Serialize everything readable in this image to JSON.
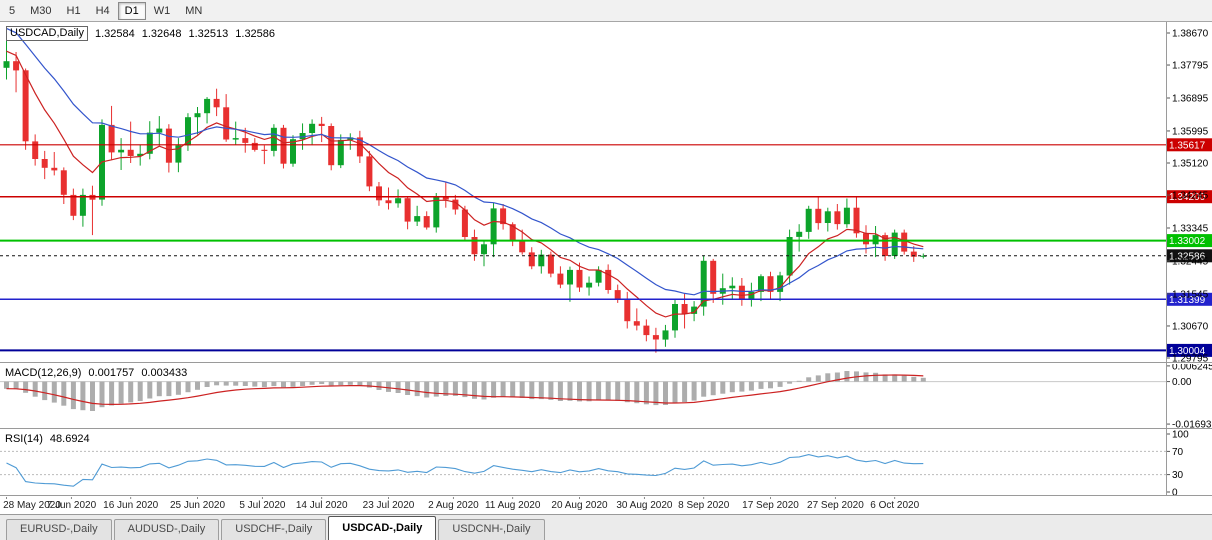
{
  "toolbar": {
    "timeframes": [
      {
        "label": "5",
        "active": false
      },
      {
        "label": "M30",
        "active": false
      },
      {
        "label": "H1",
        "active": false
      },
      {
        "label": "H4",
        "active": false
      },
      {
        "label": "D1",
        "active": true
      },
      {
        "label": "W1",
        "active": false
      },
      {
        "label": "MN",
        "active": false
      }
    ]
  },
  "chart_header": {
    "symbol": "USDCAD,Daily",
    "open": "1.32584",
    "high": "1.32648",
    "low": "1.32513",
    "close": "1.32586"
  },
  "indicators": {
    "macd_label": "MACD(12,26,9)",
    "macd_value": "0.001757",
    "macd_signal_value": "0.003433",
    "rsi_label": "RSI(14)",
    "rsi_value": "48.6924"
  },
  "price_axis": {
    "labels": [
      "1.38670",
      "1.37795",
      "1.36895",
      "1.35995",
      "1.35120",
      "1.34245",
      "1.33345",
      "1.32445",
      "1.31545",
      "1.30670",
      "1.29795"
    ]
  },
  "macd_axis": [
    "0.006245",
    "0.00",
    "-0.016933"
  ],
  "rsi_axis": [
    "100",
    "70",
    "30",
    "0"
  ],
  "levels": [
    {
      "price": 1.35617,
      "label": "1.35617",
      "color": "#CC0000",
      "width": 1.2,
      "dashed": false
    },
    {
      "price": 1.342,
      "label": "1.34200",
      "color": "#CC0000",
      "width": 1.5,
      "dashed": false
    },
    {
      "price": 1.33002,
      "label": "1.33002",
      "color": "#00C000",
      "width": 2,
      "dashed": false
    },
    {
      "price": 1.32586,
      "label": "1.32586",
      "color": "#111111",
      "width": 1,
      "dashed": true
    },
    {
      "price": 1.31399,
      "label": "1.31399",
      "color": "#2222CC",
      "width": 1.5,
      "dashed": false
    },
    {
      "price": 1.30004,
      "label": "1.30004",
      "color": "#000099",
      "width": 2,
      "dashed": false
    }
  ],
  "colors": {
    "bull": "#0DA32B",
    "bear": "#E83030",
    "ma_fast": "#CC2222",
    "ma_slow": "#3355CC",
    "macd_hist": "#ADADAD",
    "macd_signal": "#CC2222",
    "rsi_line": "#4F9BD5",
    "axis_text": "#000000",
    "grid_sep": "#9a9a9a"
  },
  "tabs": [
    {
      "label": "EURUSD-,Daily",
      "active": false
    },
    {
      "label": "AUDUSD-,Daily",
      "active": false
    },
    {
      "label": "USDCHF-,Daily",
      "active": false
    },
    {
      "label": "USDCAD-,Daily",
      "active": true
    },
    {
      "label": "USDCNH-,Daily",
      "active": false
    }
  ],
  "chart_data": {
    "type": "candlestick",
    "symbol": "USDCAD",
    "timeframe": "Daily",
    "y_range": [
      1.29686,
      1.3897
    ],
    "x_labels": [
      {
        "i": 0,
        "t": "28 May 2020"
      },
      {
        "i": 6.8,
        "t": "7 Jun 2020"
      },
      {
        "i": 13,
        "t": "16 Jun 2020"
      },
      {
        "i": 20,
        "t": "25 Jun 2020"
      },
      {
        "i": 26.8,
        "t": "5 Jul 2020"
      },
      {
        "i": 33,
        "t": "14 Jul 2020"
      },
      {
        "i": 40,
        "t": "23 Jul 2020"
      },
      {
        "i": 46.8,
        "t": "2 Aug 2020"
      },
      {
        "i": 53,
        "t": "11 Aug 2020"
      },
      {
        "i": 60,
        "t": "20 Aug 2020"
      },
      {
        "i": 66.8,
        "t": "30 Aug 2020"
      },
      {
        "i": 73,
        "t": "8 Sep 2020"
      },
      {
        "i": 80,
        "t": "17 Sep 2020"
      },
      {
        "i": 86.8,
        "t": "27 Sep 2020"
      },
      {
        "i": 93,
        "t": "6 Oct 2020"
      }
    ],
    "candles": [
      [
        1.3772,
        1.388,
        1.374,
        1.379
      ],
      [
        1.379,
        1.3815,
        1.3705,
        1.3765
      ],
      [
        1.3765,
        1.377,
        1.3548,
        1.3571
      ],
      [
        1.3571,
        1.359,
        1.3505,
        1.3523
      ],
      [
        1.3523,
        1.3545,
        1.3468,
        1.3499
      ],
      [
        1.3499,
        1.3542,
        1.3478,
        1.3492
      ],
      [
        1.3492,
        1.35,
        1.34,
        1.3425
      ],
      [
        1.3425,
        1.3442,
        1.3356,
        1.3368
      ],
      [
        1.3368,
        1.3442,
        1.3338,
        1.3425
      ],
      [
        1.3425,
        1.345,
        1.3315,
        1.3412
      ],
      [
        1.3412,
        1.3631,
        1.3395,
        1.3616
      ],
      [
        1.3616,
        1.3668,
        1.352,
        1.3541
      ],
      [
        1.3541,
        1.358,
        1.3493,
        1.3548
      ],
      [
        1.3548,
        1.3625,
        1.3512,
        1.3531
      ],
      [
        1.3531,
        1.3562,
        1.3505,
        1.3537
      ],
      [
        1.3537,
        1.3626,
        1.3522,
        1.3595
      ],
      [
        1.3595,
        1.364,
        1.356,
        1.3606
      ],
      [
        1.3606,
        1.3618,
        1.3486,
        1.3513
      ],
      [
        1.3513,
        1.358,
        1.3487,
        1.356
      ],
      [
        1.356,
        1.3648,
        1.3545,
        1.3637
      ],
      [
        1.3637,
        1.3665,
        1.359,
        1.3648
      ],
      [
        1.3648,
        1.3692,
        1.362,
        1.3687
      ],
      [
        1.3687,
        1.3715,
        1.364,
        1.3664
      ],
      [
        1.3664,
        1.37,
        1.357,
        1.3576
      ],
      [
        1.3576,
        1.3625,
        1.3562,
        1.358
      ],
      [
        1.358,
        1.3608,
        1.354,
        1.3567
      ],
      [
        1.3567,
        1.358,
        1.3543,
        1.3548
      ],
      [
        1.3548,
        1.356,
        1.3509,
        1.3545
      ],
      [
        1.3545,
        1.3618,
        1.353,
        1.3608
      ],
      [
        1.3608,
        1.3616,
        1.3497,
        1.351
      ],
      [
        1.351,
        1.3588,
        1.3502,
        1.3577
      ],
      [
        1.3577,
        1.362,
        1.3548,
        1.3594
      ],
      [
        1.3594,
        1.3631,
        1.3561,
        1.3619
      ],
      [
        1.3619,
        1.3638,
        1.3569,
        1.3613
      ],
      [
        1.3613,
        1.362,
        1.3492,
        1.3506
      ],
      [
        1.3506,
        1.359,
        1.3498,
        1.3575
      ],
      [
        1.3575,
        1.3593,
        1.3548,
        1.3582
      ],
      [
        1.3582,
        1.36,
        1.3512,
        1.353
      ],
      [
        1.353,
        1.3545,
        1.3435,
        1.3448
      ],
      [
        1.3448,
        1.346,
        1.3395,
        1.341
      ],
      [
        1.341,
        1.3445,
        1.3385,
        1.3402
      ],
      [
        1.3402,
        1.344,
        1.339,
        1.3416
      ],
      [
        1.3416,
        1.342,
        1.3331,
        1.3352
      ],
      [
        1.3352,
        1.3395,
        1.334,
        1.3367
      ],
      [
        1.3367,
        1.338,
        1.333,
        1.3336
      ],
      [
        1.3336,
        1.343,
        1.3322,
        1.3421
      ],
      [
        1.3421,
        1.3459,
        1.339,
        1.3412
      ],
      [
        1.3412,
        1.3425,
        1.3371,
        1.3385
      ],
      [
        1.3385,
        1.3395,
        1.33,
        1.331
      ],
      [
        1.331,
        1.333,
        1.3245,
        1.3263
      ],
      [
        1.3263,
        1.3298,
        1.323,
        1.329
      ],
      [
        1.329,
        1.3403,
        1.3255,
        1.3388
      ],
      [
        1.3388,
        1.34,
        1.333,
        1.3345
      ],
      [
        1.3345,
        1.335,
        1.3285,
        1.33
      ],
      [
        1.33,
        1.333,
        1.3262,
        1.3268
      ],
      [
        1.3268,
        1.3282,
        1.3222,
        1.323
      ],
      [
        1.323,
        1.3275,
        1.321,
        1.3262
      ],
      [
        1.3262,
        1.327,
        1.32,
        1.321
      ],
      [
        1.321,
        1.323,
        1.317,
        1.318
      ],
      [
        1.318,
        1.3229,
        1.3133,
        1.322
      ],
      [
        1.322,
        1.324,
        1.316,
        1.3172
      ],
      [
        1.3172,
        1.3202,
        1.315,
        1.3185
      ],
      [
        1.3185,
        1.323,
        1.3175,
        1.322
      ],
      [
        1.322,
        1.3235,
        1.3155,
        1.3165
      ],
      [
        1.3165,
        1.318,
        1.313,
        1.3142
      ],
      [
        1.3142,
        1.316,
        1.306,
        1.308
      ],
      [
        1.308,
        1.3115,
        1.3055,
        1.3068
      ],
      [
        1.3068,
        1.3085,
        1.3025,
        1.3042
      ],
      [
        1.3042,
        1.3062,
        1.2994,
        1.303
      ],
      [
        1.303,
        1.307,
        1.301,
        1.3055
      ],
      [
        1.3055,
        1.314,
        1.3035,
        1.3127
      ],
      [
        1.3127,
        1.3155,
        1.306,
        1.31
      ],
      [
        1.31,
        1.3135,
        1.308,
        1.312
      ],
      [
        1.312,
        1.326,
        1.3095,
        1.3245
      ],
      [
        1.3245,
        1.325,
        1.313,
        1.3155
      ],
      [
        1.3155,
        1.321,
        1.3125,
        1.317
      ],
      [
        1.317,
        1.32,
        1.314,
        1.3177
      ],
      [
        1.3177,
        1.3198,
        1.3122,
        1.3142
      ],
      [
        1.3142,
        1.3185,
        1.312,
        1.316
      ],
      [
        1.316,
        1.3208,
        1.3135,
        1.3203
      ],
      [
        1.3203,
        1.3215,
        1.314,
        1.316
      ],
      [
        1.316,
        1.3215,
        1.3135,
        1.3205
      ],
      [
        1.3205,
        1.333,
        1.318,
        1.331
      ],
      [
        1.331,
        1.3345,
        1.327,
        1.3324
      ],
      [
        1.3324,
        1.3395,
        1.3305,
        1.3387
      ],
      [
        1.3387,
        1.3418,
        1.333,
        1.3348
      ],
      [
        1.3348,
        1.339,
        1.3325,
        1.338
      ],
      [
        1.338,
        1.34,
        1.333,
        1.3345
      ],
      [
        1.3345,
        1.3415,
        1.3335,
        1.339
      ],
      [
        1.339,
        1.342,
        1.3308,
        1.332
      ],
      [
        1.332,
        1.3342,
        1.3265,
        1.329
      ],
      [
        1.329,
        1.334,
        1.3255,
        1.3315
      ],
      [
        1.3315,
        1.3322,
        1.3245,
        1.3258
      ],
      [
        1.3258,
        1.333,
        1.325,
        1.3322
      ],
      [
        1.3322,
        1.333,
        1.3262,
        1.327
      ],
      [
        1.327,
        1.3285,
        1.3242,
        1.3256
      ],
      [
        1.32584,
        1.32648,
        1.32513,
        1.32586
      ]
    ],
    "overlays": [
      {
        "name": "ma-fast",
        "type": "ema",
        "period": 8,
        "seed": 1.3825,
        "color": "#CC2222"
      },
      {
        "name": "ma-slow",
        "type": "ema",
        "period": 18,
        "seed": 1.389,
        "color": "#3355CC"
      }
    ],
    "macd": {
      "fast": 12,
      "slow": 26,
      "signal_period": 9,
      "fast_seed": 1.38,
      "slow_seed": 1.383,
      "range": [
        -0.0185,
        0.007
      ]
    },
    "rsi": {
      "period": 14,
      "range": [
        0,
        100
      ],
      "levels": [
        30,
        70
      ]
    }
  }
}
